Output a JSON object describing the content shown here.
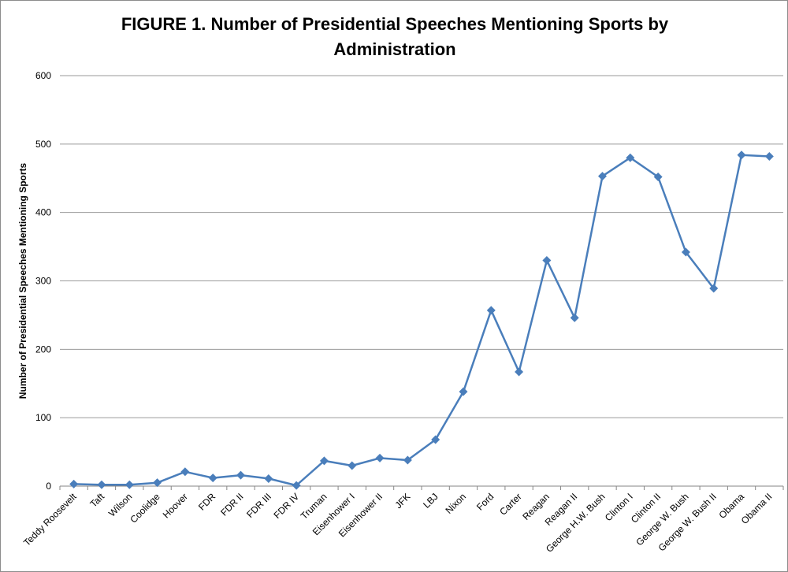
{
  "chart_data": {
    "type": "line",
    "title": "FIGURE 1. Number of Presidential Speeches Mentioning Sports by Administration",
    "xlabel": "",
    "ylabel": "Number of Presidential Speeches Mentioning Sports",
    "ylim": [
      0,
      600
    ],
    "yticks": [
      0,
      100,
      200,
      300,
      400,
      500,
      600
    ],
    "grid": true,
    "legend": "none",
    "series_color": "#4a7ebb",
    "categories": [
      "Teddy Roosevelt",
      "Taft",
      "Wilson",
      "Coolidge",
      "Hoover",
      "FDR",
      "FDR II",
      "FDR III",
      "FDR IV",
      "Truman",
      "Eisenhower I",
      "Eisenhower II",
      "JFK",
      "LBJ",
      "Nixon",
      "Ford",
      "Carter",
      "Reagan",
      "Reagan II",
      "George H.W. Bush",
      "Clinton I",
      "Clinton II",
      "George W. Bush",
      "George W. Bush II",
      "Obama",
      "Obama II"
    ],
    "series": [
      {
        "name": "Speeches",
        "values": [
          3,
          2,
          2,
          5,
          21,
          12,
          16,
          11,
          1,
          37,
          30,
          41,
          38,
          68,
          138,
          257,
          167,
          330,
          246,
          453,
          480,
          452,
          342,
          289,
          484,
          482
        ]
      }
    ]
  }
}
